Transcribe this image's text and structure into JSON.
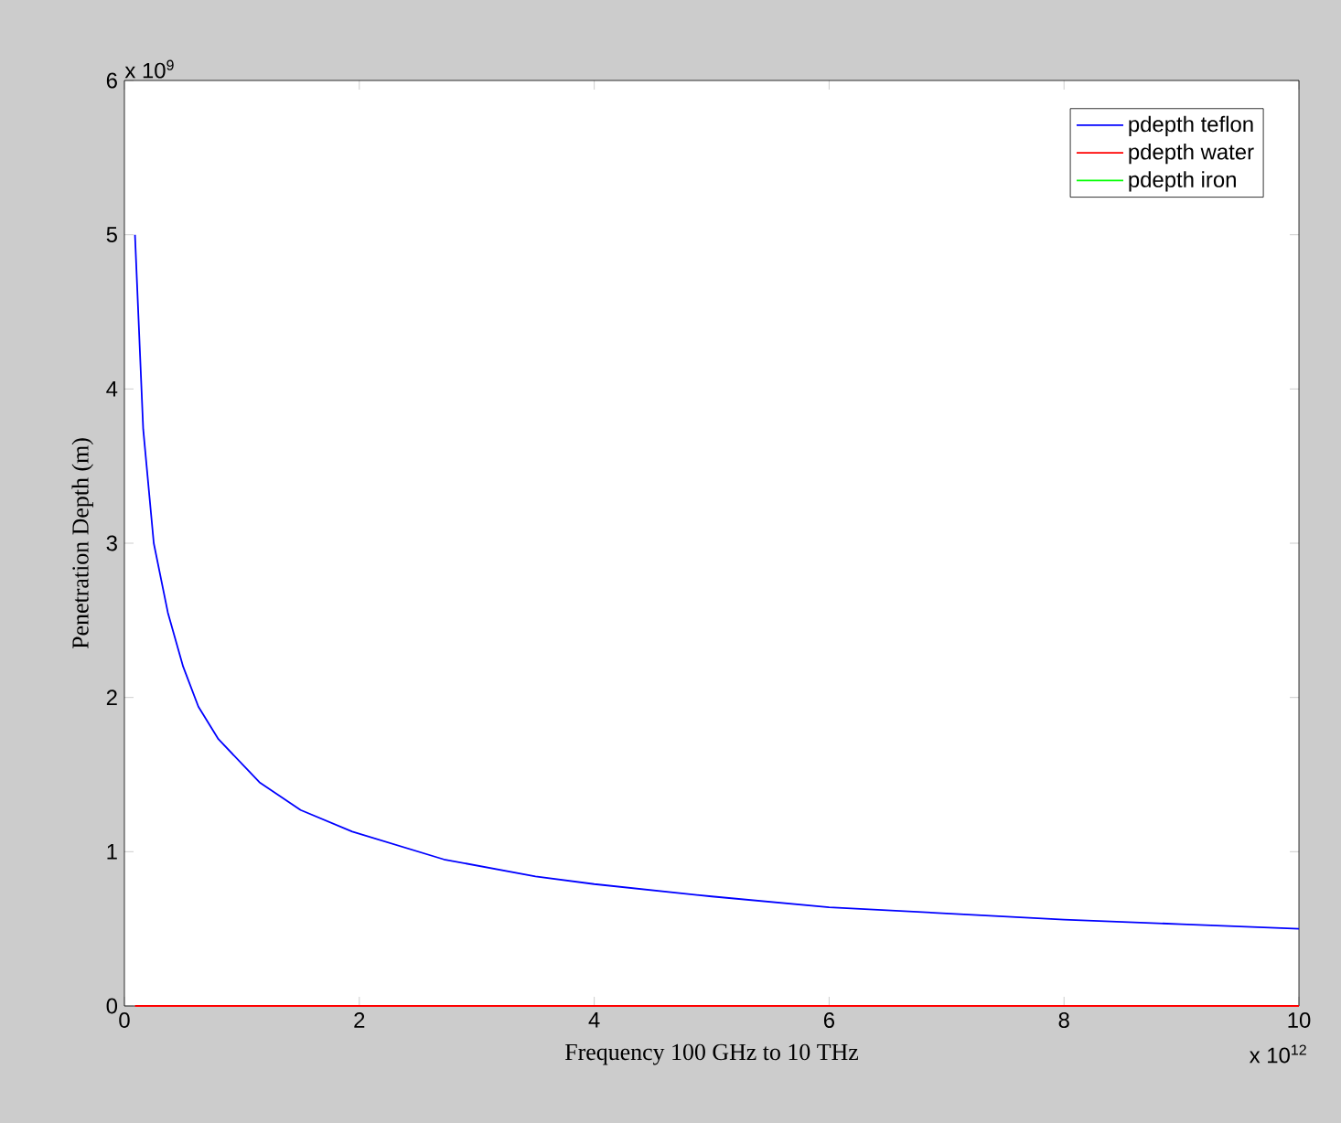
{
  "chart_data": {
    "type": "line",
    "xlabel": "Frequency 100 GHz to 10 THz",
    "ylabel": "Penetration Depth (m)",
    "annotations": [
      "x 10$^{9}$",
      "x 10$^{12}$"
    ],
    "xlim": [
      0,
      10
    ],
    "xticks": [
      0,
      2,
      4,
      6,
      8,
      10
    ],
    "ylim": [
      0,
      6
    ],
    "yticks": [
      0,
      1,
      2,
      3,
      4,
      5,
      6
    ],
    "legend": "top right",
    "line_style": "solid",
    "marker": "none",
    "series": [
      {
        "name": "pdepth teflon",
        "color": "#0000ff",
        "x": [
          0.09,
          0.16,
          0.25,
          0.37,
          0.5,
          0.63,
          0.8,
          1.15,
          1.5,
          1.94,
          2.72,
          3.5,
          4,
          5,
          6,
          7,
          8,
          9,
          10
        ],
        "values": [
          5.0,
          3.74,
          3.0,
          2.55,
          2.2,
          1.94,
          1.73,
          1.45,
          1.27,
          1.13,
          0.95,
          0.84,
          0.79,
          0.71,
          0.64,
          0.6,
          0.56,
          0.53,
          0.5
        ]
      },
      {
        "name": "pdepth water",
        "color": "#ff0000",
        "x": [
          0.09,
          10
        ],
        "values": [
          0,
          0
        ]
      },
      {
        "name": "pdepth iron",
        "color": "#00ff00",
        "values": [
          null,
          null
        ]
      }
    ]
  }
}
